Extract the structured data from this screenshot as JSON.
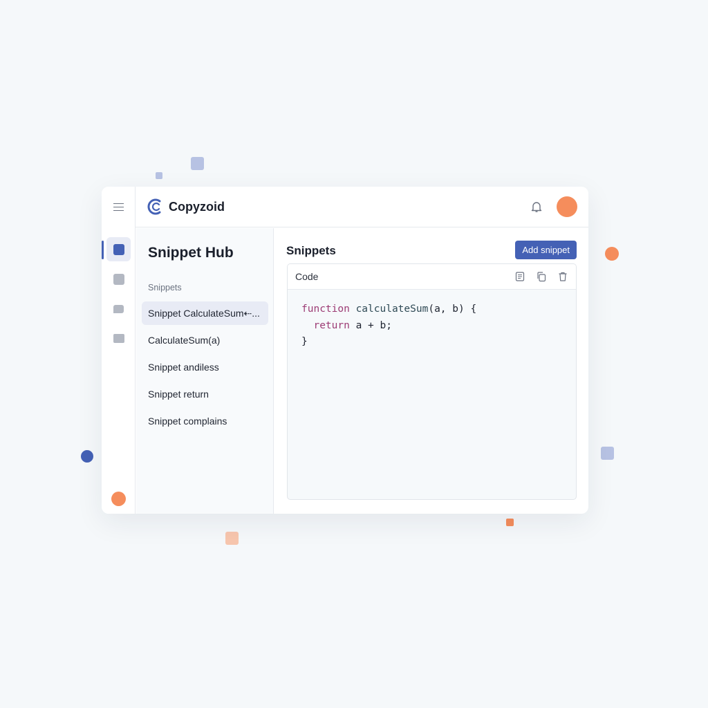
{
  "app": {
    "name": "Copyzoid"
  },
  "colors": {
    "accent": "#4461b5",
    "avatar": "#f58d5c"
  },
  "rail": {
    "icons": [
      "menu-icon",
      "snippets-icon",
      "collections-icon",
      "comments-icon",
      "folder-icon"
    ]
  },
  "sidebar": {
    "title": "Snippet Hub",
    "section": "Snippets",
    "items": [
      {
        "label": "Snippet CalculateSum⇠...",
        "selected": true
      },
      {
        "label": "CalculateSum(a)"
      },
      {
        "label": "Snippet andiless"
      },
      {
        "label": "Snippet return"
      },
      {
        "label": "Snippet complains"
      }
    ]
  },
  "main": {
    "title": "Snippets",
    "add_label": "Add snippet",
    "code": {
      "label": "Code",
      "icons": [
        "format-icon",
        "copy-icon",
        "delete-icon"
      ],
      "lines": [
        {
          "kw": "function",
          "rest": " calculateSum",
          "tail": "(a, b) {"
        },
        {
          "kw": "  return",
          "tail": " a + b;"
        },
        {
          "tail": "}"
        }
      ]
    }
  }
}
